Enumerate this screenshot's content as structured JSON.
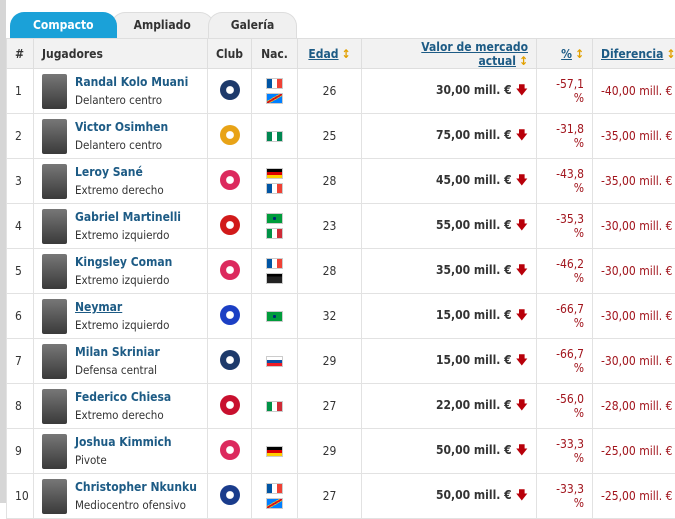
{
  "tabs": [
    "Compacto",
    "Ampliado",
    "Galería"
  ],
  "headers": {
    "num": "#",
    "players": "Jugadores",
    "club": "Club",
    "nat": "Nac.",
    "age": "Edad",
    "value": "Valor de mercado actual",
    "pct": "%",
    "diff": "Diferencia",
    "sort_icon": "↕"
  },
  "rows": [
    {
      "num": "1",
      "name": "Randal Kolo Muani",
      "pos": "Delantero centro",
      "club": "PSG",
      "club_color": "#1e3a6b",
      "flags": [
        "fr",
        "cd"
      ],
      "age": "26",
      "value": "30,00 mill. €",
      "pct": "-57,1 %",
      "diff": "-40,00 mill. €"
    },
    {
      "num": "2",
      "name": "Victor Osimhen",
      "pos": "Delantero centro",
      "club": "Galatasaray",
      "club_color": "#e8a317",
      "flags": [
        "ng"
      ],
      "age": "25",
      "value": "75,00 mill. €",
      "pct": "-31,8 %",
      "diff": "-35,00 mill. €"
    },
    {
      "num": "3",
      "name": "Leroy Sané",
      "pos": "Extremo derecho",
      "club": "Bayern",
      "club_color": "#dc2a5e",
      "flags": [
        "de",
        "fr"
      ],
      "age": "28",
      "value": "45,00 mill. €",
      "pct": "-43,8 %",
      "diff": "-35,00 mill. €"
    },
    {
      "num": "4",
      "name": "Gabriel Martinelli",
      "pos": "Extremo izquierdo",
      "club": "Arsenal",
      "club_color": "#d11a1a",
      "flags": [
        "br",
        "it"
      ],
      "age": "23",
      "value": "55,00 mill. €",
      "pct": "-35,3 %",
      "diff": "-30,00 mill. €"
    },
    {
      "num": "5",
      "name": "Kingsley Coman",
      "pos": "Extremo izquierdo",
      "club": "Bayern",
      "club_color": "#dc2a5e",
      "flags": [
        "fr",
        "gp"
      ],
      "age": "28",
      "value": "35,00 mill. €",
      "pct": "-46,2 %",
      "diff": "-30,00 mill. €"
    },
    {
      "num": "6",
      "name": "Neymar",
      "pos": "Extremo izquierdo",
      "club": "Al-Hilal",
      "club_color": "#1b3fc4",
      "flags": [
        "br"
      ],
      "age": "32",
      "value": "15,00 mill. €",
      "pct": "-66,7 %",
      "diff": "-30,00 mill. €"
    },
    {
      "num": "7",
      "name": "Milan Skriniar",
      "pos": "Defensa central",
      "club": "PSG",
      "club_color": "#1e3a6b",
      "flags": [
        "sk"
      ],
      "age": "29",
      "value": "15,00 mill. €",
      "pct": "-66,7 %",
      "diff": "-30,00 mill. €"
    },
    {
      "num": "8",
      "name": "Federico Chiesa",
      "pos": "Extremo derecho",
      "club": "Liverpool",
      "club_color": "#c8102e",
      "flags": [
        "it"
      ],
      "age": "27",
      "value": "22,00 mill. €",
      "pct": "-56,0 %",
      "diff": "-28,00 mill. €"
    },
    {
      "num": "9",
      "name": "Joshua Kimmich",
      "pos": "Pivote",
      "club": "Bayern",
      "club_color": "#dc2a5e",
      "flags": [
        "de"
      ],
      "age": "29",
      "value": "50,00 mill. €",
      "pct": "-33,3 %",
      "diff": "-25,00 mill. €"
    },
    {
      "num": "10",
      "name": "Christopher Nkunku",
      "pos": "Mediocentro ofensivo",
      "club": "Chelsea",
      "club_color": "#1a3c8c",
      "flags": [
        "fr",
        "cd"
      ],
      "age": "27",
      "value": "50,00 mill. €",
      "pct": "-33,3 %",
      "diff": "-25,00 mill. €"
    }
  ],
  "colors": {
    "accent": "#1ba1d8",
    "link": "#1d5b85",
    "negative": "#a1141c"
  }
}
